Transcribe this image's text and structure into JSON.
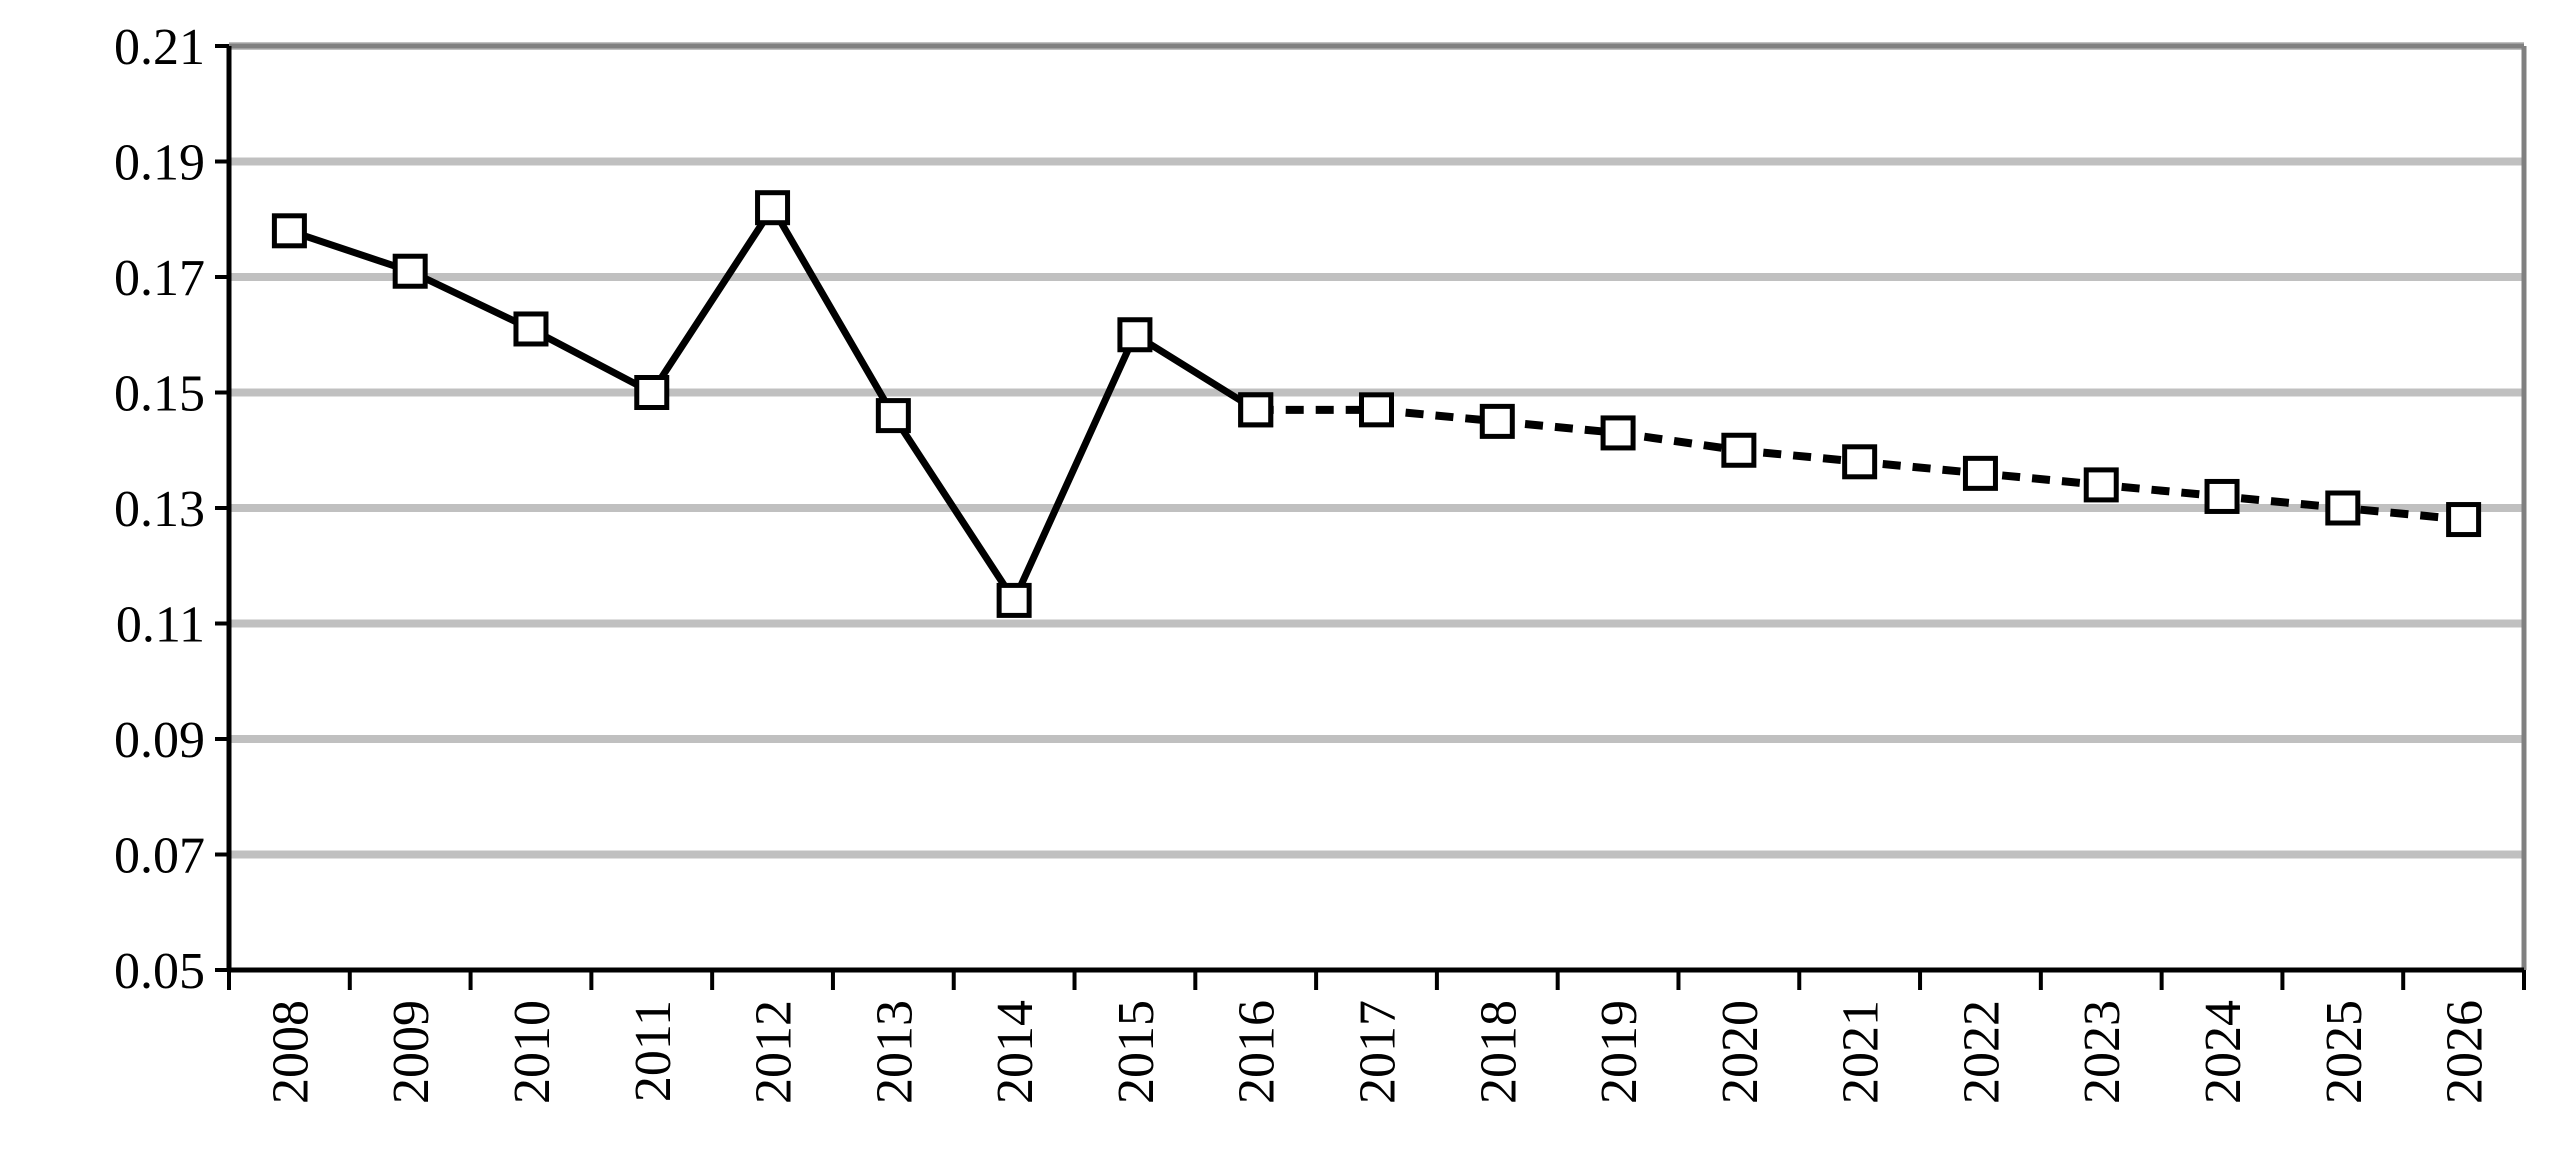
{
  "chart_data": {
    "type": "line",
    "categories": [
      "2008",
      "2009",
      "2010",
      "2011",
      "2012",
      "2013",
      "2014",
      "2015",
      "2016",
      "2017",
      "2018",
      "2019",
      "2020",
      "2021",
      "2022",
      "2023",
      "2024",
      "2025",
      "2026"
    ],
    "series": [
      {
        "color": "#000000",
        "dash": "solid",
        "values": [
          0.178,
          0.171,
          0.161,
          0.15,
          0.182,
          0.146,
          0.114,
          0.16,
          0.147,
          null,
          null,
          null,
          null,
          null,
          null,
          null,
          null,
          null,
          null
        ]
      },
      {
        "color": "#000000",
        "dash": "dashed",
        "values": [
          null,
          null,
          null,
          null,
          null,
          null,
          null,
          null,
          0.147,
          0.147,
          0.145,
          0.143,
          0.14,
          0.138,
          0.136,
          0.134,
          0.132,
          0.13,
          0.128
        ]
      }
    ],
    "ylim": [
      0.05,
      0.21
    ],
    "yticks": [
      0.05,
      0.07,
      0.09,
      0.11,
      0.13,
      0.15,
      0.17,
      0.19,
      0.21
    ],
    "grid": true
  }
}
